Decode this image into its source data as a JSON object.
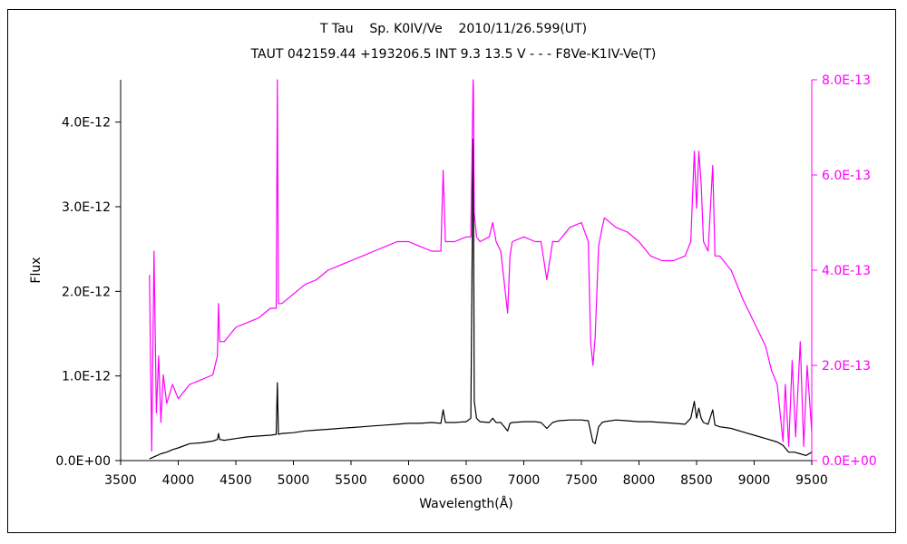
{
  "title_line1": "T Tau    Sp. K0IV/Ve    2010/11/26.599(UT)",
  "title_line2": "TAUT 042159.44 +193206.5 INT 9.3 13.5 V - - - F8Ve-K1IV-Ve(T)",
  "colors": {
    "black_series": "#000000",
    "magenta_series": "#ff00ff",
    "frame": "#000000"
  },
  "chart_data": {
    "type": "line",
    "title": "T Tau    Sp. K0IV/Ve    2010/11/26.599(UT)",
    "subtitle": "TAUT 042159.44 +193206.5 INT 9.3 13.5 V - - - F8Ve-K1IV-Ve(T)",
    "xlabel": "Wavelength(Å)",
    "ylabel": "Flux",
    "y2label": "",
    "xlim": [
      3500,
      9500
    ],
    "ylim": [
      0,
      4.5e-12
    ],
    "y2lim": [
      0,
      8e-13
    ],
    "xticks": [
      "3500",
      "4000",
      "4500",
      "5000",
      "5500",
      "6000",
      "6500",
      "7000",
      "7500",
      "8000",
      "8500",
      "9000",
      "9500"
    ],
    "yticks": [
      "0.0E+00",
      "1.0E-12",
      "2.0E-12",
      "3.0E-12",
      "4.0E-12"
    ],
    "y2ticks": [
      "0.0E+00",
      "2.0E-13",
      "4.0E-13",
      "6.0E-13",
      "8.0E-13"
    ],
    "grid": false,
    "legend": "none",
    "series": [
      {
        "axis": "left",
        "color": "#000000",
        "x": [
          3750,
          3800,
          3850,
          3900,
          3950,
          4000,
          4100,
          4200,
          4300,
          4340,
          4350,
          4360,
          4400,
          4500,
          4600,
          4700,
          4800,
          4850,
          4861,
          4870,
          4900,
          5000,
          5100,
          5200,
          5300,
          5400,
          5500,
          5600,
          5700,
          5800,
          5900,
          6000,
          6100,
          6200,
          6280,
          6300,
          6320,
          6400,
          6500,
          6540,
          6560,
          6563,
          6570,
          6590,
          6620,
          6700,
          6730,
          6760,
          6800,
          6860,
          6880,
          6900,
          7000,
          7100,
          7150,
          7200,
          7250,
          7300,
          7400,
          7500,
          7560,
          7600,
          7620,
          7650,
          7680,
          7700,
          7800,
          7900,
          8000,
          8100,
          8200,
          8300,
          8400,
          8450,
          8480,
          8500,
          8520,
          8540,
          8560,
          8600,
          8640,
          8660,
          8700,
          8800,
          8900,
          9000,
          9100,
          9200,
          9250,
          9300,
          9350,
          9400,
          9450,
          9500
        ],
        "y": [
          2e-14,
          5e-14,
          8e-14,
          1e-13,
          1.3e-13,
          1.5e-13,
          2e-13,
          2.1e-13,
          2.3e-13,
          2.5e-13,
          3.2e-13,
          2.5e-13,
          2.4e-13,
          2.6e-13,
          2.8e-13,
          2.9e-13,
          3e-13,
          3.1e-13,
          9.2e-13,
          3.1e-13,
          3.2e-13,
          3.3e-13,
          3.5e-13,
          3.6e-13,
          3.7e-13,
          3.8e-13,
          3.9e-13,
          4e-13,
          4.1e-13,
          4.2e-13,
          4.3e-13,
          4.4e-13,
          4.4e-13,
          4.5e-13,
          4.4e-13,
          6e-13,
          4.5e-13,
          4.5e-13,
          4.6e-13,
          5e-13,
          3.8e-12,
          3.3e-12,
          7e-13,
          5e-13,
          4.6e-13,
          4.5e-13,
          5e-13,
          4.5e-13,
          4.5e-13,
          3.5e-13,
          4.4e-13,
          4.5e-13,
          4.6e-13,
          4.6e-13,
          4.5e-13,
          3.8e-13,
          4.5e-13,
          4.7e-13,
          4.8e-13,
          4.8e-13,
          4.7e-13,
          2.2e-13,
          2e-13,
          4e-13,
          4.5e-13,
          4.6e-13,
          4.8e-13,
          4.7e-13,
          4.6e-13,
          4.6e-13,
          4.5e-13,
          4.4e-13,
          4.3e-13,
          5e-13,
          7e-13,
          5e-13,
          6.2e-13,
          5e-13,
          4.5e-13,
          4.3e-13,
          6e-13,
          4.2e-13,
          4e-13,
          3.8e-13,
          3.4e-13,
          3e-13,
          2.6e-13,
          2.2e-13,
          1.8e-13,
          1e-13,
          1e-13,
          8e-14,
          6e-14,
          1e-13
        ]
      },
      {
        "axis": "right",
        "color": "#ff00ff",
        "x": [
          3750,
          3770,
          3790,
          3810,
          3830,
          3850,
          3870,
          3900,
          3950,
          4000,
          4100,
          4200,
          4300,
          4340,
          4350,
          4360,
          4400,
          4500,
          4600,
          4700,
          4800,
          4850,
          4861,
          4870,
          4900,
          5000,
          5100,
          5200,
          5300,
          5400,
          5500,
          5600,
          5700,
          5800,
          5900,
          6000,
          6100,
          6200,
          6280,
          6300,
          6320,
          6400,
          6500,
          6540,
          6560,
          6563,
          6570,
          6590,
          6620,
          6700,
          6730,
          6760,
          6800,
          6860,
          6880,
          6900,
          7000,
          7100,
          7150,
          7200,
          7250,
          7300,
          7400,
          7500,
          7560,
          7580,
          7600,
          7620,
          7650,
          7680,
          7700,
          7800,
          7900,
          8000,
          8100,
          8200,
          8300,
          8400,
          8450,
          8480,
          8500,
          8520,
          8540,
          8560,
          8600,
          8640,
          8660,
          8700,
          8800,
          8900,
          9000,
          9100,
          9150,
          9200,
          9250,
          9270,
          9300,
          9330,
          9360,
          9400,
          9430,
          9460,
          9500
        ],
        "y": [
          3.9e-13,
          2e-14,
          4.4e-13,
          1e-13,
          2.2e-13,
          8e-14,
          1.8e-13,
          1.2e-13,
          1.6e-13,
          1.3e-13,
          1.6e-13,
          1.7e-13,
          1.8e-13,
          2.2e-13,
          3.3e-13,
          2.5e-13,
          2.5e-13,
          2.8e-13,
          2.9e-13,
          3e-13,
          3.2e-13,
          3.2e-13,
          8e-13,
          3.3e-13,
          3.3e-13,
          3.5e-13,
          3.7e-13,
          3.8e-13,
          4e-13,
          4.1e-13,
          4.2e-13,
          4.3e-13,
          4.4e-13,
          4.5e-13,
          4.6e-13,
          4.6e-13,
          4.5e-13,
          4.4e-13,
          4.4e-13,
          6.1e-13,
          4.6e-13,
          4.6e-13,
          4.7e-13,
          4.7e-13,
          8e-13,
          7.8e-13,
          5.2e-13,
          4.7e-13,
          4.6e-13,
          4.7e-13,
          5e-13,
          4.6e-13,
          4.4e-13,
          3.1e-13,
          4.3e-13,
          4.6e-13,
          4.7e-13,
          4.6e-13,
          4.6e-13,
          3.8e-13,
          4.6e-13,
          4.6e-13,
          4.9e-13,
          5e-13,
          4.6e-13,
          2.5e-13,
          2e-13,
          2.6e-13,
          4.5e-13,
          4.9e-13,
          5.1e-13,
          4.9e-13,
          4.8e-13,
          4.6e-13,
          4.3e-13,
          4.2e-13,
          4.2e-13,
          4.3e-13,
          4.6e-13,
          6.5e-13,
          5.3e-13,
          6.5e-13,
          5.8e-13,
          4.6e-13,
          4.4e-13,
          6.2e-13,
          4.3e-13,
          4.3e-13,
          4e-13,
          3.4e-13,
          2.9e-13,
          2.4e-13,
          1.9e-13,
          1.6e-13,
          4e-14,
          1.6e-13,
          3e-14,
          2.1e-13,
          5e-14,
          2.5e-13,
          3e-14,
          2e-13,
          6e-14
        ]
      }
    ]
  }
}
